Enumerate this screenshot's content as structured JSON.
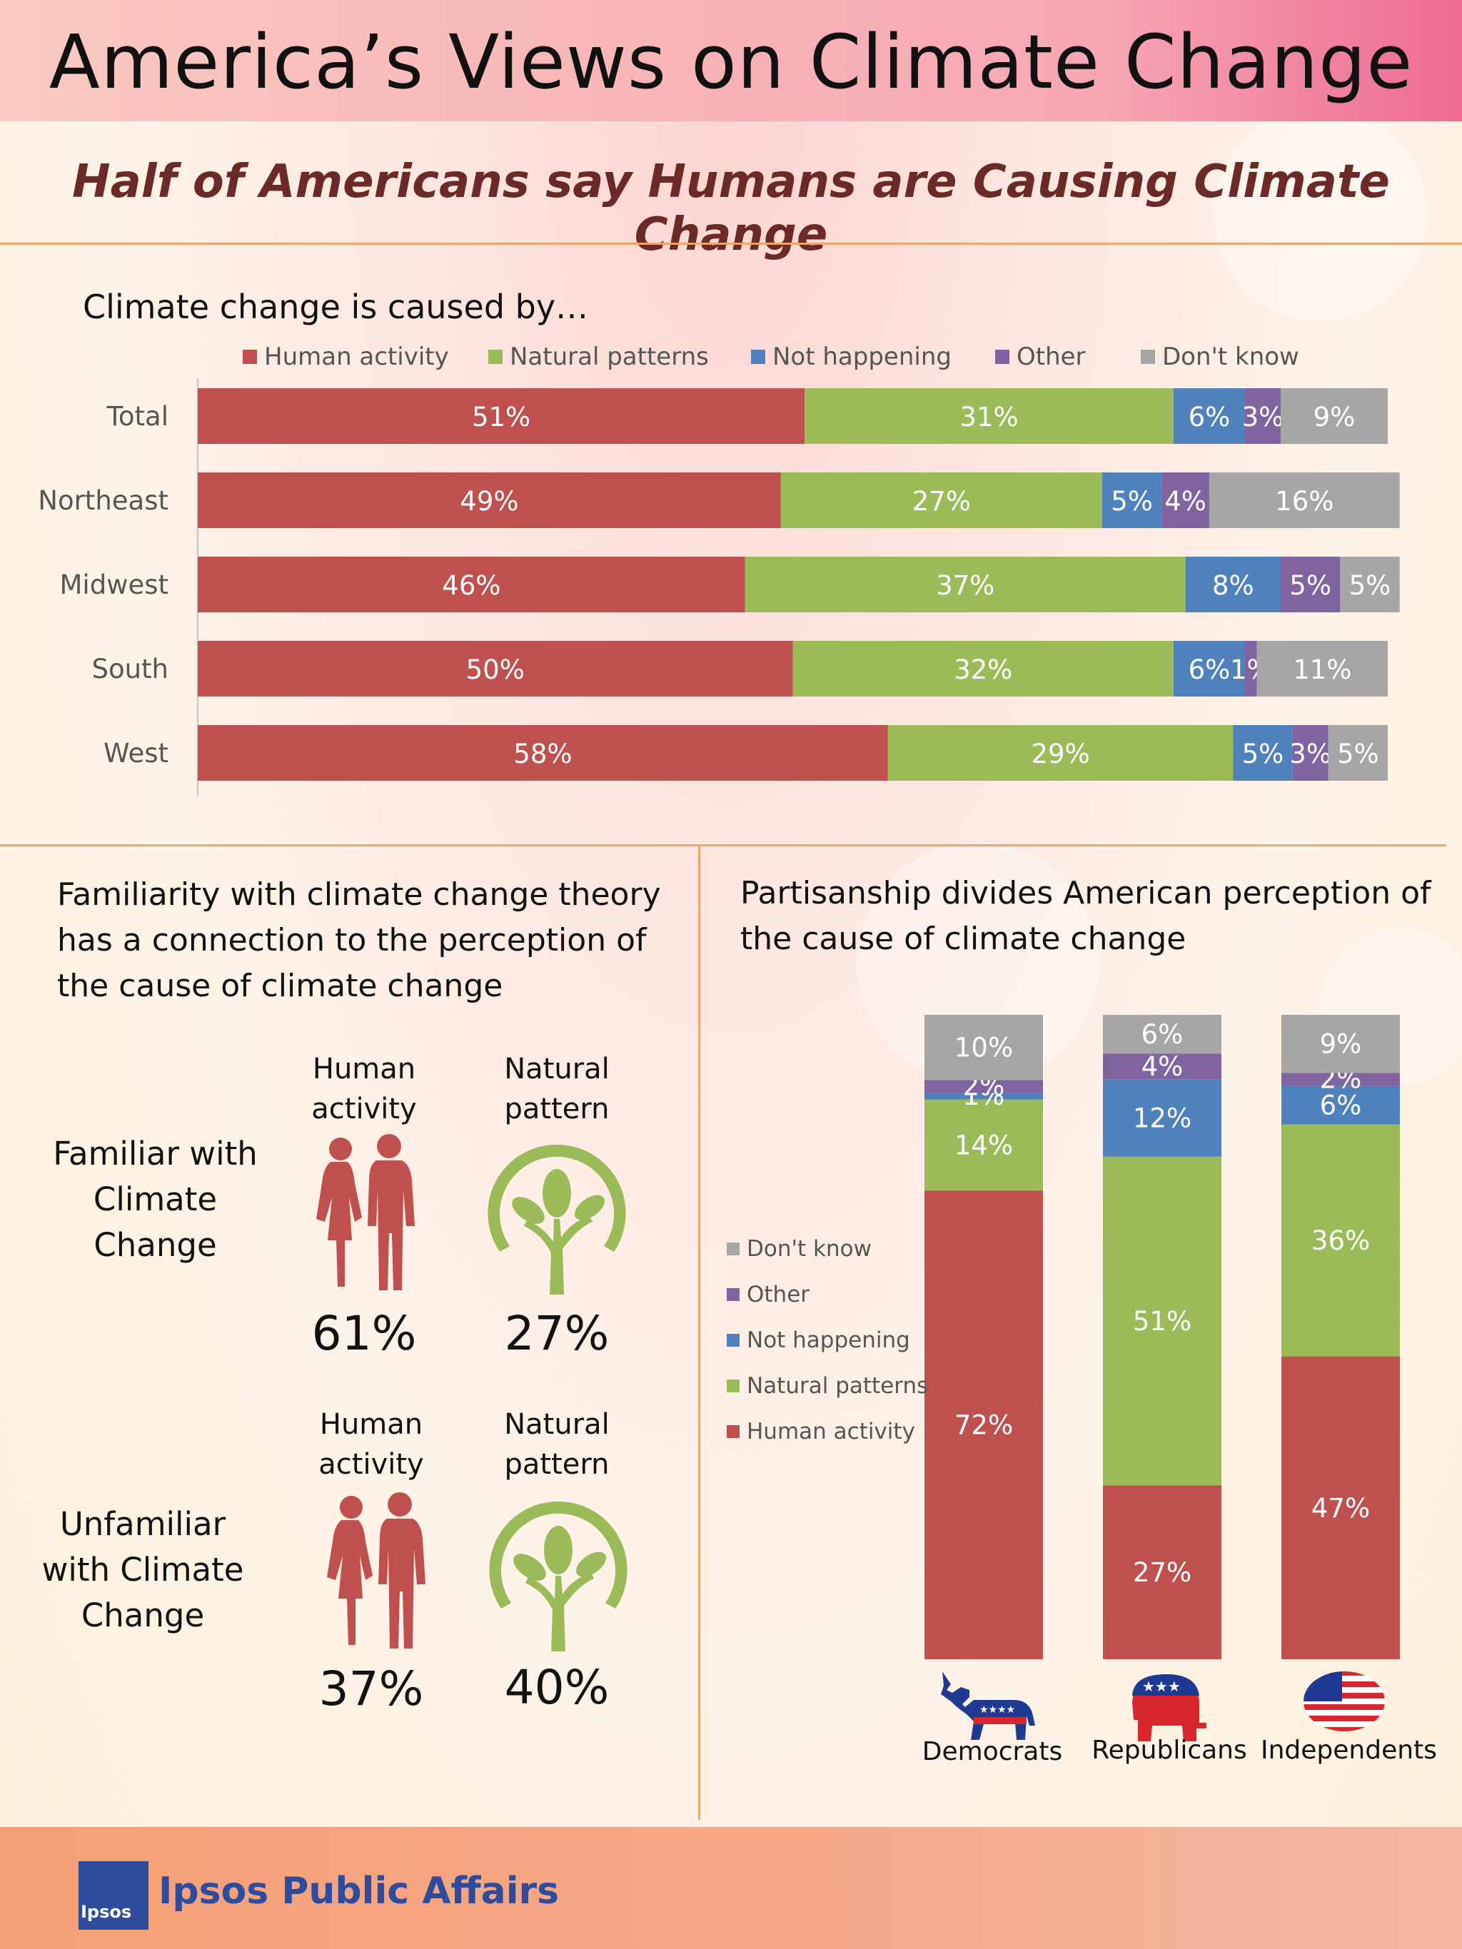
{
  "header": {
    "title": "America’s Views on Climate Change",
    "subtitle": "Half of Americans say Humans are Causing Climate Change"
  },
  "colors": {
    "human": "#c0504d",
    "natural": "#9bbb59",
    "not_happening": "#4f81bd",
    "other": "#8064a2",
    "dont_know": "#a6a6a6",
    "accent_line": "#f0a56a"
  },
  "chart_data": [
    {
      "type": "bar",
      "orientation": "horizontal",
      "stacked": true,
      "title": "Climate change is caused by…",
      "categories": [
        "Total",
        "Northeast",
        "Midwest",
        "South",
        "West"
      ],
      "series": [
        {
          "name": "Human activity",
          "values": [
            51,
            49,
            46,
            50,
            58
          ]
        },
        {
          "name": "Natural patterns",
          "values": [
            31,
            27,
            37,
            32,
            29
          ]
        },
        {
          "name": "Not happening",
          "values": [
            6,
            5,
            8,
            6,
            5
          ]
        },
        {
          "name": "Other",
          "values": [
            3,
            4,
            5,
            1,
            3
          ]
        },
        {
          "name": "Don't know",
          "values": [
            9,
            16,
            5,
            11,
            5
          ]
        }
      ],
      "xlim": [
        0,
        100
      ],
      "legend": "top",
      "grid": false
    },
    {
      "type": "bar",
      "orientation": "vertical",
      "stacked": true,
      "title": "Partisanship divides American perception of the cause of climate change",
      "categories": [
        "Democrats",
        "Republicans",
        "Independents"
      ],
      "series": [
        {
          "name": "Human activity",
          "values": [
            72,
            27,
            47
          ]
        },
        {
          "name": "Natural patterns",
          "values": [
            14,
            51,
            36
          ]
        },
        {
          "name": "Not happening",
          "values": [
            1,
            12,
            6
          ]
        },
        {
          "name": "Other",
          "values": [
            2,
            4,
            2
          ]
        },
        {
          "name": "Don't know",
          "values": [
            10,
            6,
            9
          ]
        }
      ],
      "legend_order": [
        "Don't know",
        "Other",
        "Not happening",
        "Natural patterns",
        "Human activity"
      ],
      "legend": "left",
      "grid": false
    }
  ],
  "familiarity": {
    "title": "Familiarity with climate change theory has a connection to the perception of the cause of climate change",
    "groups": [
      {
        "label": "Familiar with Climate Change",
        "human_label": "Human activity",
        "natural_label": "Natural pattern",
        "human_pct": "61%",
        "natural_pct": "27%"
      },
      {
        "label": "Unfamiliar with Climate Change",
        "human_label": "Human activity",
        "natural_label": "Natural pattern",
        "human_pct": "37%",
        "natural_pct": "40%"
      }
    ],
    "icons": {
      "human": "couple-silhouette-icon",
      "natural": "tree-icon"
    }
  },
  "partisan_icons": [
    "democrat-donkey-icon",
    "republican-elephant-icon",
    "american-flag-icon"
  ],
  "footer": {
    "logo_text": "Ipsos",
    "brand": "Ipsos Public Affairs"
  }
}
